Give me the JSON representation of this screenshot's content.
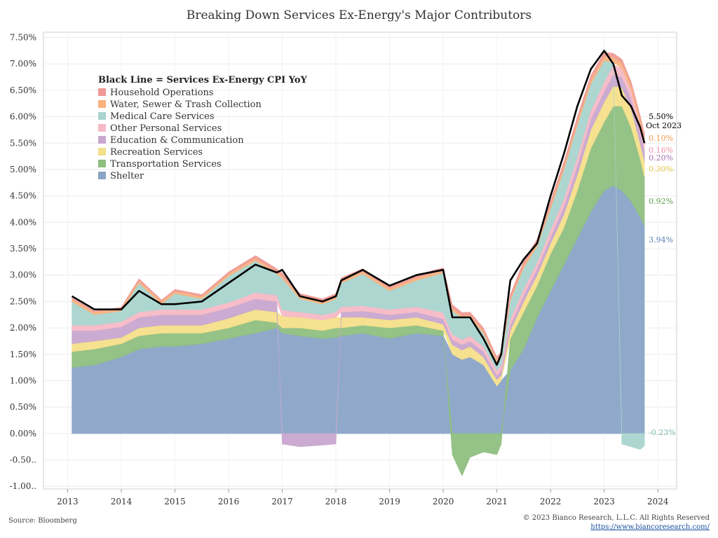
{
  "page": {
    "title": "Breaking Down Services Ex-Energy's Major Contributors",
    "source": "Source: Bloomberg",
    "copyright": "© 2023 Bianco Research, L.L.C. All Rights Reserved",
    "url": "https://www.biancoresearch.com/"
  },
  "chart_data": {
    "type": "area",
    "title": "Breaking Down Services Ex-Energy's Major Contributors",
    "legend_title": "Black Line = Services Ex-Energy CPI YoY",
    "legend_position": "top-left",
    "grid": true,
    "ylim": [
      -1.05,
      7.6
    ],
    "y_ticks": [
      {
        "v": 7.5,
        "label": "7.50%"
      },
      {
        "v": 7.0,
        "label": "7.00%"
      },
      {
        "v": 6.5,
        "label": "6.50%"
      },
      {
        "v": 6.0,
        "label": "6.00%"
      },
      {
        "v": 5.5,
        "label": "5.50%"
      },
      {
        "v": 5.0,
        "label": "5.00%"
      },
      {
        "v": 4.5,
        "label": "4.50%"
      },
      {
        "v": 4.0,
        "label": "4.00%"
      },
      {
        "v": 3.5,
        "label": "3.50%"
      },
      {
        "v": 3.0,
        "label": "3.00%"
      },
      {
        "v": 2.5,
        "label": "2.50%"
      },
      {
        "v": 2.0,
        "label": "2.00%"
      },
      {
        "v": 1.5,
        "label": "1.50%"
      },
      {
        "v": 1.0,
        "label": "1.00%"
      },
      {
        "v": 0.5,
        "label": "0.50%"
      },
      {
        "v": 0.0,
        "label": "0.00%"
      },
      {
        "v": -0.5,
        "label": "-0.50.."
      },
      {
        "v": -1.0,
        "label": "-1.00.."
      }
    ],
    "xlim": [
      2012.55,
      2024.35
    ],
    "x_ticks": [
      {
        "v": 2013,
        "label": "2013"
      },
      {
        "v": 2014,
        "label": "2014"
      },
      {
        "v": 2015,
        "label": "2015"
      },
      {
        "v": 2016,
        "label": "2016"
      },
      {
        "v": 2017,
        "label": "2017"
      },
      {
        "v": 2018,
        "label": "2018"
      },
      {
        "v": 2019,
        "label": "2019"
      },
      {
        "v": 2020,
        "label": "2020"
      },
      {
        "v": 2021,
        "label": "2021"
      },
      {
        "v": 2022,
        "label": "2022"
      },
      {
        "v": 2023,
        "label": "2023"
      },
      {
        "v": 2024,
        "label": "2024"
      }
    ],
    "x": [
      2013.08,
      2013.5,
      2014.0,
      2014.33,
      2014.75,
      2015.0,
      2015.5,
      2016.0,
      2016.5,
      2016.9,
      2017.0,
      2017.33,
      2017.75,
      2018.0,
      2018.1,
      2018.5,
      2019.0,
      2019.5,
      2020.0,
      2020.17,
      2020.35,
      2020.5,
      2020.75,
      2021.0,
      2021.08,
      2021.25,
      2021.5,
      2021.75,
      2022.0,
      2022.25,
      2022.5,
      2022.75,
      2023.0,
      2023.17,
      2023.33,
      2023.5,
      2023.67,
      2023.75
    ],
    "series": [
      {
        "name": "Shelter",
        "color": "#8aa4c7",
        "label": "3.94%",
        "values": [
          1.25,
          1.3,
          1.45,
          1.6,
          1.65,
          1.65,
          1.7,
          1.8,
          1.9,
          2.0,
          1.9,
          1.85,
          1.8,
          1.82,
          1.85,
          1.9,
          1.8,
          1.9,
          1.85,
          1.5,
          1.4,
          1.45,
          1.3,
          0.9,
          1.0,
          1.2,
          1.6,
          2.2,
          2.7,
          3.2,
          3.7,
          4.2,
          4.6,
          4.7,
          4.6,
          4.4,
          4.1,
          3.94
        ]
      },
      {
        "name": "Transportation Services",
        "color": "#8fbf7f",
        "label": "0.92%",
        "values": [
          0.3,
          0.3,
          0.25,
          0.25,
          0.25,
          0.25,
          0.2,
          0.2,
          0.25,
          0.1,
          0.1,
          0.15,
          0.15,
          0.18,
          0.15,
          0.15,
          0.2,
          0.15,
          0.1,
          -0.4,
          -0.8,
          -0.45,
          -0.35,
          -0.4,
          -0.2,
          0.6,
          0.7,
          0.6,
          0.7,
          0.7,
          0.9,
          1.2,
          1.3,
          1.5,
          1.6,
          1.4,
          1.1,
          0.92
        ]
      },
      {
        "name": "Recreation Services",
        "color": "#f4df8a",
        "label": "0.30%",
        "values": [
          0.15,
          0.15,
          0.12,
          0.15,
          0.15,
          0.15,
          0.15,
          0.18,
          0.2,
          0.2,
          0.22,
          0.2,
          0.2,
          0.2,
          0.2,
          0.15,
          0.15,
          0.15,
          0.12,
          0.18,
          0.18,
          0.2,
          0.15,
          0.12,
          0.1,
          0.15,
          0.2,
          0.2,
          0.2,
          0.25,
          0.3,
          0.35,
          0.38,
          0.38,
          0.35,
          0.35,
          0.3,
          0.3
        ]
      },
      {
        "name": "Education & Communication",
        "color": "#c8a7cf",
        "label": "0.20%",
        "values": [
          0.25,
          0.2,
          0.2,
          0.2,
          0.2,
          0.2,
          0.2,
          0.2,
          0.2,
          0.2,
          -0.2,
          -0.25,
          -0.22,
          -0.2,
          0.1,
          0.12,
          0.1,
          0.1,
          0.1,
          0.1,
          0.1,
          0.1,
          0.1,
          0.08,
          0.1,
          0.1,
          0.12,
          0.12,
          0.12,
          0.15,
          0.18,
          0.2,
          0.2,
          0.22,
          0.2,
          0.2,
          0.2,
          0.2
        ]
      },
      {
        "name": "Other Personal Services",
        "color": "#f6b9c6",
        "label": "0.16%",
        "values": [
          0.1,
          0.1,
          0.1,
          0.1,
          0.1,
          0.1,
          0.1,
          0.1,
          0.12,
          0.12,
          0.12,
          0.1,
          0.1,
          0.1,
          0.1,
          0.1,
          0.1,
          0.1,
          0.12,
          0.1,
          0.1,
          0.1,
          0.1,
          0.1,
          0.1,
          0.12,
          0.12,
          0.12,
          0.14,
          0.15,
          0.16,
          0.17,
          0.18,
          0.18,
          0.17,
          0.16,
          0.16,
          0.16
        ]
      },
      {
        "name": "Medical Care Services",
        "color": "#a9d4cf",
        "label": "-0.23%",
        "values": [
          0.45,
          0.2,
          0.2,
          0.55,
          0.1,
          0.3,
          0.2,
          0.5,
          0.6,
          0.4,
          0.6,
          0.25,
          0.2,
          0.25,
          0.45,
          0.6,
          0.35,
          0.5,
          0.75,
          0.45,
          0.4,
          0.35,
          0.25,
          0.15,
          0.15,
          0.35,
          0.4,
          0.3,
          0.4,
          0.55,
          0.6,
          0.5,
          0.4,
          0.05,
          -0.2,
          -0.25,
          -0.3,
          -0.23
        ]
      },
      {
        "name": "Water, Sewer & Trash Collection",
        "color": "#f7b27e",
        "label": "0.10%",
        "values": [
          0.05,
          0.05,
          0.05,
          0.05,
          0.05,
          0.05,
          0.05,
          0.05,
          0.05,
          0.05,
          0.05,
          0.05,
          0.05,
          0.05,
          0.05,
          0.05,
          0.05,
          0.05,
          0.05,
          0.05,
          0.05,
          0.05,
          0.05,
          0.05,
          0.05,
          0.05,
          0.06,
          0.06,
          0.06,
          0.07,
          0.08,
          0.08,
          0.09,
          0.1,
          0.1,
          0.1,
          0.1,
          0.1
        ]
      },
      {
        "name": "Household Operations",
        "color": "#ef9a95",
        "label": "",
        "values": [
          0.02,
          0.02,
          0.02,
          0.03,
          0.03,
          0.03,
          0.03,
          0.03,
          0.05,
          0.05,
          0.05,
          0.05,
          0.05,
          0.05,
          0.05,
          0.05,
          0.05,
          0.05,
          0.05,
          0.06,
          0.06,
          0.05,
          0.05,
          0.05,
          0.05,
          0.06,
          0.07,
          0.08,
          0.08,
          0.08,
          0.08,
          0.08,
          0.07,
          0.07,
          0.07,
          0.06,
          0.06,
          0.06
        ]
      }
    ],
    "total": {
      "name": "Services Ex-Energy CPI YoY",
      "color": "#000000",
      "label_value": "5.50%",
      "label_date": "Oct 2023",
      "values": [
        2.6,
        2.35,
        2.35,
        2.7,
        2.45,
        2.45,
        2.5,
        2.85,
        3.2,
        3.05,
        3.1,
        2.6,
        2.5,
        2.6,
        2.9,
        3.1,
        2.8,
        3.0,
        3.1,
        2.2,
        2.2,
        2.2,
        1.8,
        1.3,
        1.5,
        2.9,
        3.3,
        3.6,
        4.5,
        5.3,
        6.2,
        6.9,
        7.25,
        7.0,
        6.4,
        6.2,
        5.8,
        5.5
      ]
    }
  }
}
